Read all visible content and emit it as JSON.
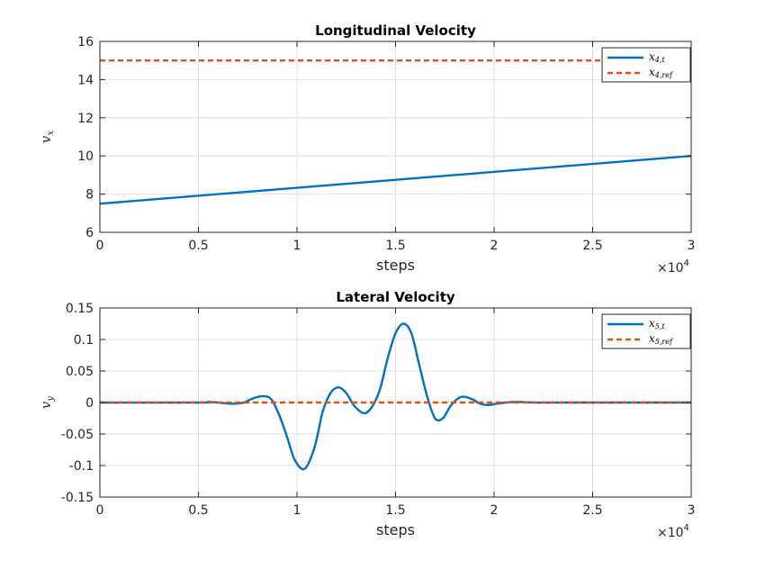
{
  "chart_data": [
    {
      "type": "line",
      "title": "Longitudinal Velocity",
      "xlabel": "steps",
      "ylabel": "v_x",
      "ylabel_main": "v",
      "ylabel_sub": "x",
      "x_multiplier": {
        "base": "×10",
        "exp": "4"
      },
      "xlim": [
        0,
        30000
      ],
      "ylim": [
        6,
        16
      ],
      "xticks": [
        0,
        5000,
        10000,
        15000,
        20000,
        25000,
        30000
      ],
      "xticklabels": [
        "0",
        "0.5",
        "1",
        "1.5",
        "2",
        "2.5",
        "3"
      ],
      "yticks": [
        6,
        8,
        10,
        12,
        14,
        16
      ],
      "yticklabels": [
        "6",
        "8",
        "10",
        "12",
        "14",
        "16"
      ],
      "grid": true,
      "legend_position": "top-right",
      "series": [
        {
          "name": "x_{4,t}",
          "legend_main": "x",
          "legend_sub": "4,t",
          "color": "#0072BD",
          "style": "solid",
          "x": [
            0,
            30000
          ],
          "y": [
            7.5,
            10.0
          ]
        },
        {
          "name": "x_{4,ref}",
          "legend_main": "x",
          "legend_sub": "4,ref",
          "color": "#D95319",
          "style": "dashed",
          "x": [
            0,
            30000
          ],
          "y": [
            15,
            15
          ]
        }
      ]
    },
    {
      "type": "line",
      "title": "Lateral Velocity",
      "xlabel": "steps",
      "ylabel": "v_y",
      "ylabel_main": "v",
      "ylabel_sub": "y",
      "x_multiplier": {
        "base": "×10",
        "exp": "4"
      },
      "xlim": [
        0,
        30000
      ],
      "ylim": [
        -0.15,
        0.15
      ],
      "xticks": [
        0,
        5000,
        10000,
        15000,
        20000,
        25000,
        30000
      ],
      "xticklabels": [
        "0",
        "0.5",
        "1",
        "1.5",
        "2",
        "2.5",
        "3"
      ],
      "yticks": [
        -0.15,
        -0.1,
        -0.05,
        0,
        0.05,
        0.1,
        0.15
      ],
      "yticklabels": [
        "-0.15",
        "-0.1",
        "-0.05",
        "0",
        "0.05",
        "0.1",
        "0.15"
      ],
      "grid": true,
      "legend_position": "top-right",
      "series": [
        {
          "name": "x_{5,t}",
          "legend_main": "x",
          "legend_sub": "5,t",
          "color": "#0072BD",
          "style": "solid",
          "x": [
            0,
            5000,
            5500,
            6000,
            6700,
            7300,
            7800,
            8300,
            8700,
            9100,
            9500,
            9900,
            10400,
            10900,
            11300,
            11700,
            12100,
            12500,
            12900,
            13400,
            13800,
            14200,
            14600,
            15000,
            15400,
            15800,
            16200,
            16600,
            17000,
            17400,
            17800,
            18200,
            18500,
            18900,
            19300,
            19700,
            20100,
            20600,
            21100,
            21600,
            22100,
            23000,
            30000
          ],
          "y": [
            0,
            0,
            0.001,
            0,
            -0.002,
            0,
            0.007,
            0.01,
            0.005,
            -0.02,
            -0.055,
            -0.092,
            -0.105,
            -0.07,
            -0.015,
            0.015,
            0.024,
            0.015,
            -0.005,
            -0.017,
            -0.007,
            0.02,
            0.07,
            0.11,
            0.125,
            0.11,
            0.06,
            0.01,
            -0.025,
            -0.025,
            -0.005,
            0.007,
            0.009,
            0.005,
            -0.002,
            -0.004,
            -0.002,
            0,
            0.001,
            0.0005,
            0,
            0,
            0
          ]
        },
        {
          "name": "x_{5,ref}",
          "legend_main": "x",
          "legend_sub": "5,ref",
          "color": "#D95319",
          "style": "dashed",
          "x": [
            0,
            30000
          ],
          "y": [
            0,
            0
          ]
        }
      ]
    }
  ]
}
